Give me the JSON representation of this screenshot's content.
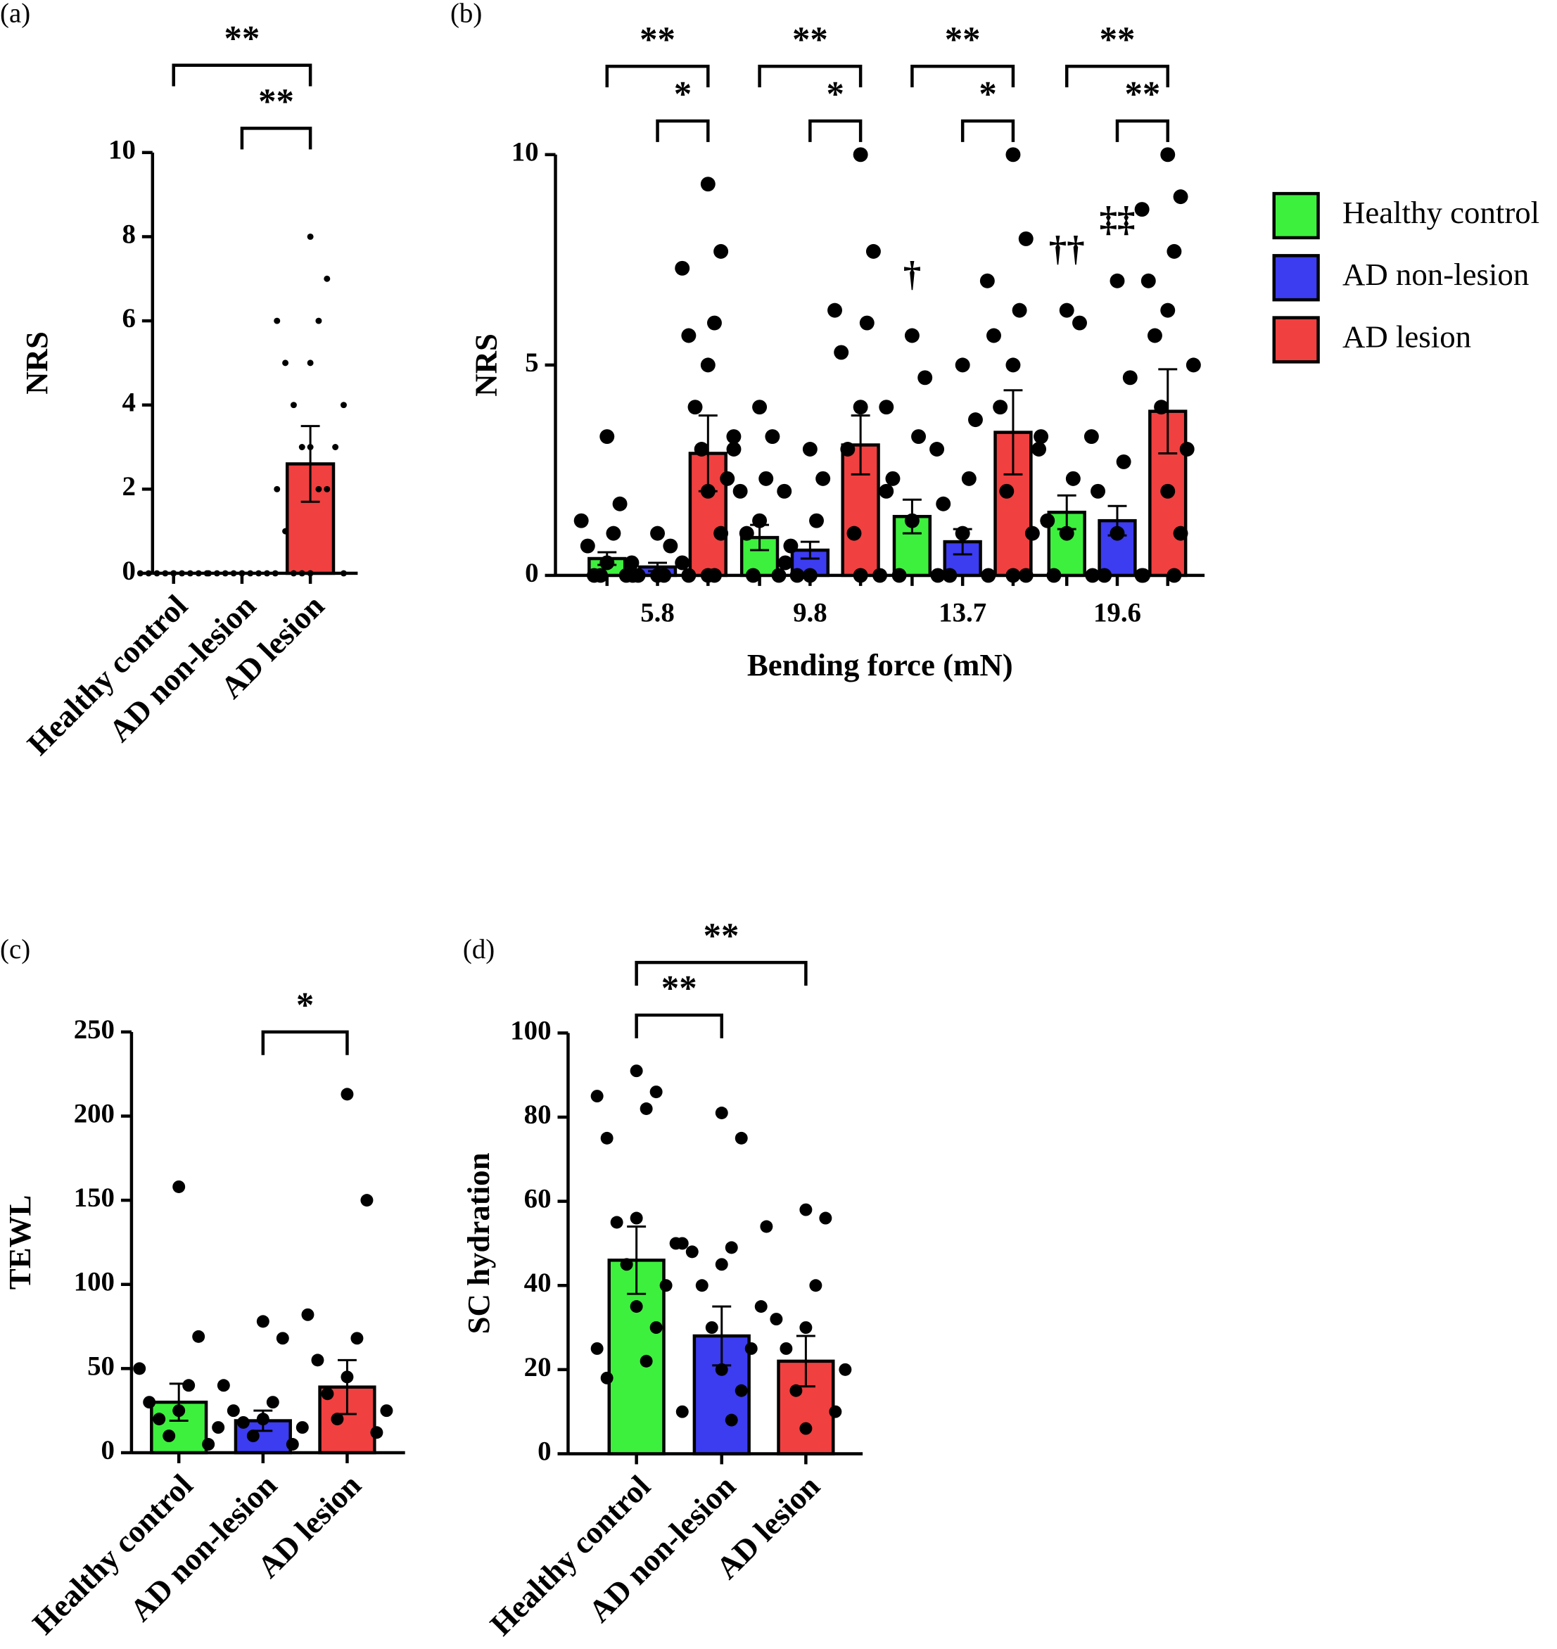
{
  "chart_data": [
    {
      "type": "bar",
      "panel": "(a)",
      "ylabel": "NRS",
      "categories": [
        "Healthy control",
        "AD non-lesion",
        "AD lesion"
      ],
      "colors": [
        "#3df03d",
        "#3c3cf0",
        "#f04040"
      ],
      "values": [
        0,
        0,
        2.6
      ],
      "errors": [
        0,
        0,
        0.9
      ],
      "points": [
        [
          0,
          0,
          0,
          0,
          0,
          0,
          0,
          0,
          0,
          0
        ],
        [
          0,
          0,
          0,
          0,
          0,
          0,
          0,
          0,
          0,
          0
        ],
        [
          8,
          7,
          6,
          6,
          5,
          5,
          4,
          4,
          3,
          3,
          3,
          2,
          2,
          2,
          1,
          0,
          0,
          0,
          0
        ]
      ],
      "ylim": [
        0,
        10
      ],
      "yticks": [
        0,
        2,
        4,
        6,
        8,
        10
      ],
      "brackets": [
        {
          "from": 1,
          "to": 2,
          "label": "**"
        },
        {
          "from": 0,
          "to": 2,
          "label": "**"
        }
      ]
    },
    {
      "type": "grouped_bar",
      "panel": "(b)",
      "ylabel": "NRS",
      "xlabel": "Bending force (mN)",
      "categories": [
        "5.8",
        "9.8",
        "13.7",
        "19.6"
      ],
      "series": [
        {
          "name": "Healthy control",
          "color": "#3df03d",
          "values": [
            0.4,
            0.9,
            1.4,
            1.5
          ],
          "errors": [
            0.15,
            0.3,
            0.4,
            0.4
          ],
          "points": [
            [
              3.3,
              1.7,
              1.3,
              1,
              0.7,
              0.3,
              0,
              0,
              0,
              0
            ],
            [
              4,
              3.3,
              3,
              2.3,
              2,
              1.3,
              1,
              0.3,
              0,
              0
            ],
            [
              5.7,
              4.7,
              4,
              3.3,
              2.3,
              1.3,
              0,
              0
            ],
            [
              6.3,
              6,
              3.3,
              2.3,
              1.3,
              1,
              0,
              0
            ]
          ]
        },
        {
          "name": "AD non-lesion",
          "color": "#3c3cf0",
          "values": [
            0.2,
            0.6,
            0.8,
            1.3
          ],
          "errors": [
            0.1,
            0.2,
            0.3,
            0.35
          ],
          "points": [
            [
              1,
              0.7,
              0.3,
              0,
              0,
              0
            ],
            [
              3,
              2.3,
              2,
              1.3,
              0.7,
              0,
              0
            ],
            [
              5,
              3.7,
              3,
              2.3,
              1.7,
              1,
              0,
              0
            ],
            [
              7,
              4.7,
              3.3,
              2.7,
              2,
              1,
              0,
              0
            ]
          ]
        },
        {
          "name": "AD lesion",
          "color": "#f04040",
          "values": [
            2.9,
            3.1,
            3.4,
            3.9
          ],
          "errors": [
            0.9,
            0.7,
            1.0,
            1.0
          ],
          "points": [
            [
              9.3,
              7.7,
              7.3,
              6,
              5.7,
              5,
              4,
              3.3,
              3,
              2.3,
              2,
              1,
              0.3,
              0,
              0,
              0
            ],
            [
              10,
              7.7,
              6.3,
              6,
              5.3,
              4,
              3,
              2,
              1,
              0,
              0
            ],
            [
              10,
              8,
              7,
              6.3,
              5.7,
              5,
              4,
              3,
              2,
              1,
              0,
              0
            ],
            [
              10,
              9,
              8.7,
              7.7,
              7,
              6.3,
              5.7,
              5,
              4,
              3,
              2,
              1,
              0,
              0
            ]
          ]
        }
      ],
      "ylim": [
        0,
        10
      ],
      "yticks": [
        0,
        5,
        10
      ],
      "legend": "right",
      "brackets": [
        {
          "category": 0,
          "from": 1,
          "to": 2,
          "label": "*"
        },
        {
          "category": 0,
          "from": 0,
          "to": 2,
          "label": "**"
        },
        {
          "category": 1,
          "from": 1,
          "to": 2,
          "label": "*"
        },
        {
          "category": 1,
          "from": 0,
          "to": 2,
          "label": "**"
        },
        {
          "category": 2,
          "from": 1,
          "to": 2,
          "label": "*"
        },
        {
          "category": 2,
          "from": 0,
          "to": 2,
          "label": "**"
        },
        {
          "category": 3,
          "from": 1,
          "to": 2,
          "label": "**"
        },
        {
          "category": 3,
          "from": 0,
          "to": 2,
          "label": "**"
        }
      ],
      "markers": [
        {
          "category": 2,
          "series": 0,
          "label": "†"
        },
        {
          "category": 3,
          "series": 0,
          "label": "††"
        },
        {
          "category": 3,
          "series": 1,
          "label": "‡‡"
        }
      ]
    },
    {
      "type": "bar",
      "panel": "(c)",
      "ylabel": "TEWL",
      "categories": [
        "Healthy control",
        "AD non-lesion",
        "AD lesion"
      ],
      "colors": [
        "#3df03d",
        "#3c3cf0",
        "#f04040"
      ],
      "values": [
        30,
        19,
        39
      ],
      "errors": [
        11,
        6,
        16
      ],
      "points": [
        [
          158,
          69,
          50,
          40,
          30,
          25,
          20,
          15,
          10,
          5
        ],
        [
          78,
          68,
          40,
          30,
          25,
          20,
          18,
          15,
          10,
          5
        ],
        [
          213,
          150,
          82,
          68,
          55,
          45,
          35,
          25,
          20,
          12
        ]
      ],
      "ylim": [
        0,
        250
      ],
      "yticks": [
        0,
        50,
        100,
        150,
        200,
        250
      ],
      "brackets": [
        {
          "from": 1,
          "to": 2,
          "label": "*"
        }
      ]
    },
    {
      "type": "bar",
      "panel": "(d)",
      "ylabel": "SC hydration",
      "categories": [
        "Healthy control",
        "AD non-lesion",
        "AD lesion"
      ],
      "colors": [
        "#3df03d",
        "#3c3cf0",
        "#f04040"
      ],
      "values": [
        46,
        28,
        22
      ],
      "errors": [
        8,
        7,
        6
      ],
      "points": [
        [
          91,
          86,
          85,
          82,
          75,
          56,
          55,
          50,
          45,
          40,
          35,
          30,
          25,
          22,
          18
        ],
        [
          81,
          75,
          50,
          49,
          48,
          45,
          40,
          35,
          30,
          25,
          20,
          15,
          10,
          8
        ],
        [
          58,
          56,
          54,
          40,
          32,
          30,
          25,
          20,
          15,
          10,
          6
        ]
      ],
      "ylim": [
        0,
        100
      ],
      "yticks": [
        0,
        20,
        40,
        60,
        80,
        100
      ],
      "brackets": [
        {
          "from": 0,
          "to": 1,
          "label": "**"
        },
        {
          "from": 0,
          "to": 2,
          "label": "**"
        }
      ]
    }
  ]
}
